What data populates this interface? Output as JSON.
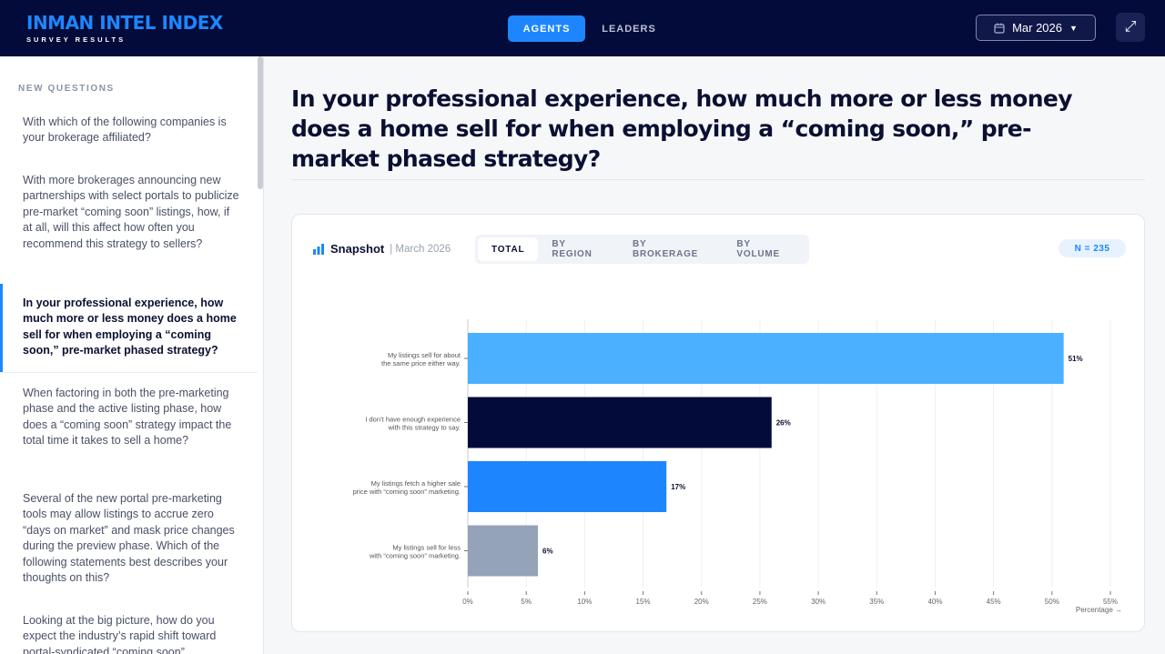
{
  "header": {
    "logo": "INMAN INTEL INDEX",
    "subtitle": "SURVEY RESULTS",
    "nav": [
      {
        "label": "AGENTS",
        "active": true
      },
      {
        "label": "LEADERS",
        "active": false
      }
    ],
    "date": "Mar 2026",
    "accent": "#1d86ff",
    "background": "#030b3a"
  },
  "sidebar": {
    "heading": "NEW QUESTIONS",
    "questions": [
      "With which of the following companies is your brokerage affiliated?",
      "With more brokerages announcing new partnerships with select portals to publicize pre-market “coming soon” listings, how, if at all, will this affect how often you recommend this strategy to sellers?",
      "In your professional experience, how much more or less money does a home sell for when employing a “coming soon,” pre-market phased strategy?",
      "When factoring in both the pre-marketing phase and the active listing phase, how does a “coming soon” strategy impact the total time it takes to sell a home?",
      "Several of the new portal pre-marketing tools may allow listings to accrue zero “days on market” and mask price changes during the preview phase. Which of the following statements best describes your thoughts on this?",
      "Looking at the big picture, how do you expect the industry’s rapid shift toward portal-syndicated “coming soon”"
    ],
    "active_index": 2
  },
  "main": {
    "title": "In your professional experience, how much more or less money does a home sell for when employing a “coming soon,” pre-market phased strategy?",
    "card": {
      "label": "Snapshot",
      "date": "| March 2026",
      "tabs": [
        "TOTAL",
        "BY REGION",
        "BY BROKERAGE",
        "BY VOLUME"
      ],
      "active_tab": 0,
      "n": "N = 235"
    }
  },
  "chart_data": {
    "type": "bar",
    "orientation": "horizontal",
    "categories": [
      "My listings sell for about the same price either way.",
      "I don’t have enough experience with this strategy to say.",
      "My listings fetch a higher sale price with “coming soon” marketing.",
      "My listings sell for less with “coming soon” marketing."
    ],
    "values": [
      51,
      26,
      17,
      6
    ],
    "data_labels": [
      "51%",
      "26%",
      "17%",
      "6%"
    ],
    "colors": [
      "#4ab0ff",
      "#030b3a",
      "#1d86ff",
      "#94a3b8"
    ],
    "xlim": [
      0,
      55
    ],
    "xticks": [
      "0%",
      "5%",
      "10%",
      "15%",
      "20%",
      "25%",
      "30%",
      "35%",
      "40%",
      "45%",
      "50%",
      "55%"
    ],
    "xlabel": "Percentage →",
    "grid": true
  }
}
